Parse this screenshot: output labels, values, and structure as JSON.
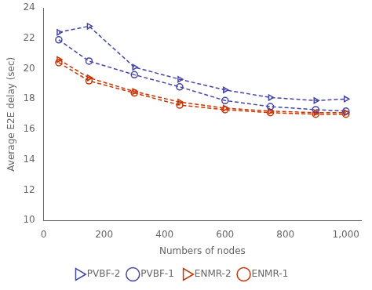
{
  "chart_data": {
    "type": "line",
    "x": [
      50,
      150,
      300,
      450,
      600,
      750,
      900,
      1000
    ],
    "series": [
      {
        "name": "PVBF-2",
        "color": "#4444aa",
        "marker": "triangle-right",
        "line_style": "dashed",
        "values": [
          22.4,
          22.8,
          20.1,
          19.3,
          18.6,
          18.1,
          17.9,
          18.0
        ]
      },
      {
        "name": "PVBF-1",
        "color": "#4444aa",
        "marker": "circle",
        "line_style": "dashed",
        "values": [
          21.9,
          20.5,
          19.6,
          18.8,
          17.9,
          17.5,
          17.3,
          17.2
        ]
      },
      {
        "name": "ENMR-2",
        "color": "#cc3300",
        "marker": "triangle-right",
        "line_style": "dashed",
        "values": [
          20.6,
          19.4,
          18.5,
          17.8,
          17.4,
          17.2,
          17.1,
          17.1
        ]
      },
      {
        "name": "ENMR-1",
        "color": "#cc3300",
        "marker": "circle",
        "line_style": "dashed",
        "values": [
          20.4,
          19.2,
          18.4,
          17.6,
          17.3,
          17.1,
          17.0,
          17.0
        ]
      }
    ],
    "xlabel": "Numbers of nodes",
    "ylabel": "Average E2E delay (sec)",
    "xlim": [
      0,
      1050
    ],
    "ylim": [
      10,
      24
    ],
    "xticks": [
      0,
      200,
      400,
      600,
      800,
      1000
    ],
    "yticks": [
      10,
      12,
      14,
      16,
      18,
      20,
      22,
      24
    ],
    "grid": false,
    "legend": "bottom"
  }
}
